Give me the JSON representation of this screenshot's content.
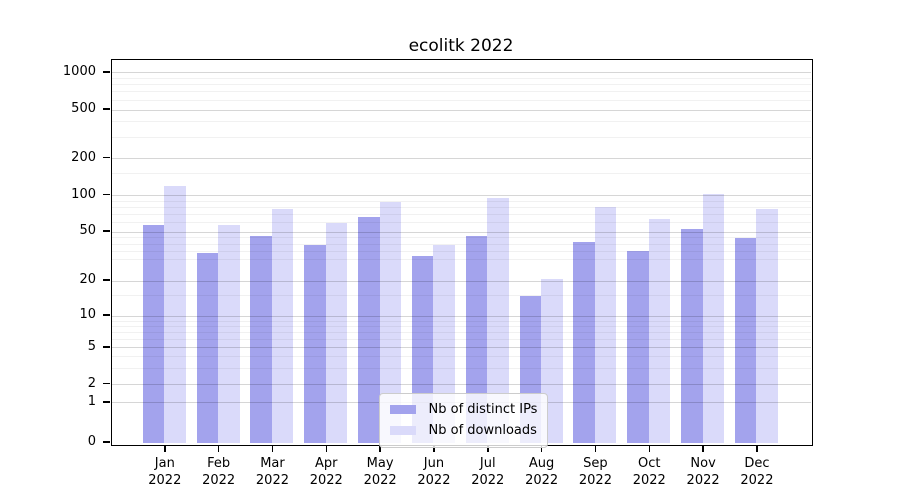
{
  "chart_data": {
    "type": "bar",
    "title": "ecolitk 2022",
    "categories": [
      "Jan 2022",
      "Feb 2022",
      "Mar 2022",
      "Apr 2022",
      "May 2022",
      "Jun 2022",
      "Jul 2022",
      "Aug 2022",
      "Sep 2022",
      "Oct 2022",
      "Nov 2022",
      "Dec 2022"
    ],
    "series": [
      {
        "name": "Nb of distinct IPs",
        "color": "#a3a3ed",
        "values": [
          57,
          34,
          47,
          39,
          67,
          32,
          47,
          15,
          42,
          35,
          53,
          45
        ]
      },
      {
        "name": "Nb of downloads",
        "color": "#dadafa",
        "values": [
          120,
          57,
          77,
          59,
          89,
          39,
          96,
          21,
          80,
          64,
          102,
          78
        ]
      }
    ],
    "xlabel": "",
    "ylabel": "",
    "yscale": "log-with-zero",
    "yticks": [
      0,
      1,
      2,
      5,
      10,
      20,
      50,
      100,
      200,
      500,
      1000
    ],
    "ylim": [
      0,
      1300
    ],
    "grid": true,
    "legend_position": "lower center inside",
    "colors": {
      "background": "#ffffff",
      "axis": "#000000",
      "grid_major": "#d7d7d7",
      "grid_minor": "#f0f0f0",
      "legend_border": "#cccccc"
    }
  }
}
